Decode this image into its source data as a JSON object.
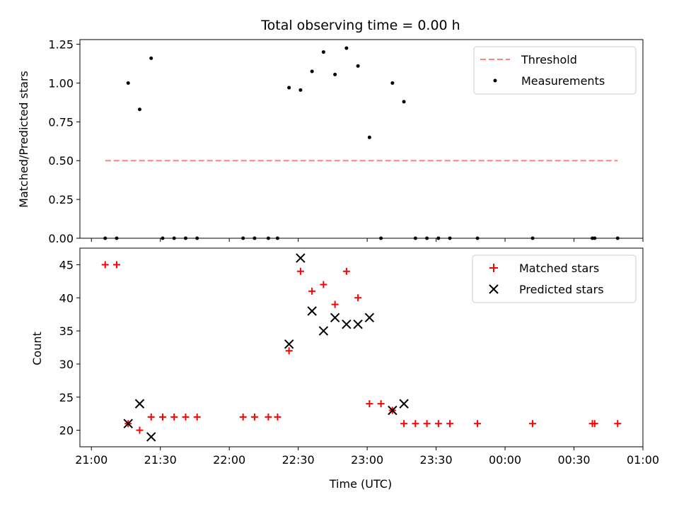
{
  "chart_data": {
    "title": "Total observing time = 0.00 h",
    "xlabel": "Time (UTC)",
    "x_unit": "minutes after 21:00 UTC",
    "xlim": [
      -5,
      240
    ],
    "x_ticks": [
      {
        "value": 0,
        "label": "21:00"
      },
      {
        "value": 30,
        "label": "21:30"
      },
      {
        "value": 60,
        "label": "22:00"
      },
      {
        "value": 90,
        "label": "22:30"
      },
      {
        "value": 120,
        "label": "23:00"
      },
      {
        "value": 150,
        "label": "23:30"
      },
      {
        "value": 180,
        "label": "00:00"
      },
      {
        "value": 210,
        "label": "00:30"
      },
      {
        "value": 240,
        "label": "01:00"
      }
    ],
    "panels": [
      {
        "type": "scatter",
        "ylabel": "Matched/Predicted stars",
        "ylim": [
          0,
          1.28
        ],
        "y_ticks": [
          {
            "value": 0,
            "label": "0.00"
          },
          {
            "value": 0.25,
            "label": "0.25"
          },
          {
            "value": 0.5,
            "label": "0.50"
          },
          {
            "value": 0.75,
            "label": "0.75"
          },
          {
            "value": 1.0,
            "label": "1.00"
          },
          {
            "value": 1.25,
            "label": "1.25"
          }
        ],
        "legend_position": "top-right",
        "threshold": {
          "name": "Threshold",
          "y": 0.5,
          "x_start": 6,
          "x_end": 229,
          "color": "#ff8080"
        },
        "measurements": {
          "name": "Measurements",
          "color": "#000000",
          "points": [
            [
              6,
              0
            ],
            [
              11,
              0
            ],
            [
              16,
              1.0
            ],
            [
              21,
              0.83
            ],
            [
              26,
              1.16
            ],
            [
              31,
              0
            ],
            [
              36,
              0
            ],
            [
              41,
              0
            ],
            [
              46,
              0
            ],
            [
              66,
              0
            ],
            [
              71,
              0
            ],
            [
              77,
              0
            ],
            [
              81,
              0
            ],
            [
              86,
              0.97
            ],
            [
              91,
              0.955
            ],
            [
              96,
              1.075
            ],
            [
              101,
              1.2
            ],
            [
              106,
              1.055
            ],
            [
              111,
              1.225
            ],
            [
              116,
              1.11
            ],
            [
              121,
              0.65
            ],
            [
              126,
              0
            ],
            [
              131,
              1.0
            ],
            [
              136,
              0.88
            ],
            [
              141,
              0
            ],
            [
              146,
              0
            ],
            [
              151,
              0
            ],
            [
              156,
              0
            ],
            [
              168,
              0
            ],
            [
              192,
              0
            ],
            [
              218,
              0
            ],
            [
              219,
              0
            ],
            [
              229,
              0
            ]
          ]
        }
      },
      {
        "type": "scatter",
        "ylabel": "Count",
        "ylim": [
          17.5,
          47.5
        ],
        "y_ticks": [
          {
            "value": 20,
            "label": "20"
          },
          {
            "value": 25,
            "label": "25"
          },
          {
            "value": 30,
            "label": "30"
          },
          {
            "value": 35,
            "label": "35"
          },
          {
            "value": 40,
            "label": "40"
          },
          {
            "value": 45,
            "label": "45"
          }
        ],
        "legend_position": "top-right",
        "series": [
          {
            "name": "Matched stars",
            "marker": "plus",
            "color": "#ff0000",
            "points": [
              [
                6,
                45
              ],
              [
                11,
                45
              ],
              [
                16,
                21
              ],
              [
                21,
                20
              ],
              [
                26,
                22
              ],
              [
                31,
                22
              ],
              [
                36,
                22
              ],
              [
                41,
                22
              ],
              [
                46,
                22
              ],
              [
                66,
                22
              ],
              [
                71,
                22
              ],
              [
                77,
                22
              ],
              [
                81,
                22
              ],
              [
                86,
                32
              ],
              [
                91,
                44
              ],
              [
                96,
                41
              ],
              [
                101,
                42
              ],
              [
                106,
                39
              ],
              [
                111,
                44
              ],
              [
                116,
                40
              ],
              [
                121,
                24
              ],
              [
                126,
                24
              ],
              [
                131,
                23
              ],
              [
                136,
                21
              ],
              [
                141,
                21
              ],
              [
                146,
                21
              ],
              [
                151,
                21
              ],
              [
                156,
                21
              ],
              [
                168,
                21
              ],
              [
                192,
                21
              ],
              [
                218,
                21
              ],
              [
                219,
                21
              ],
              [
                229,
                21
              ]
            ]
          },
          {
            "name": "Predicted stars",
            "marker": "x",
            "color": "#000000",
            "points": [
              [
                16,
                21
              ],
              [
                21,
                24
              ],
              [
                26,
                19
              ],
              [
                86,
                33
              ],
              [
                91,
                46
              ],
              [
                96,
                38
              ],
              [
                101,
                35
              ],
              [
                106,
                37
              ],
              [
                111,
                36
              ],
              [
                116,
                36
              ],
              [
                121,
                37
              ],
              [
                131,
                23
              ],
              [
                136,
                24
              ]
            ]
          }
        ]
      }
    ]
  }
}
